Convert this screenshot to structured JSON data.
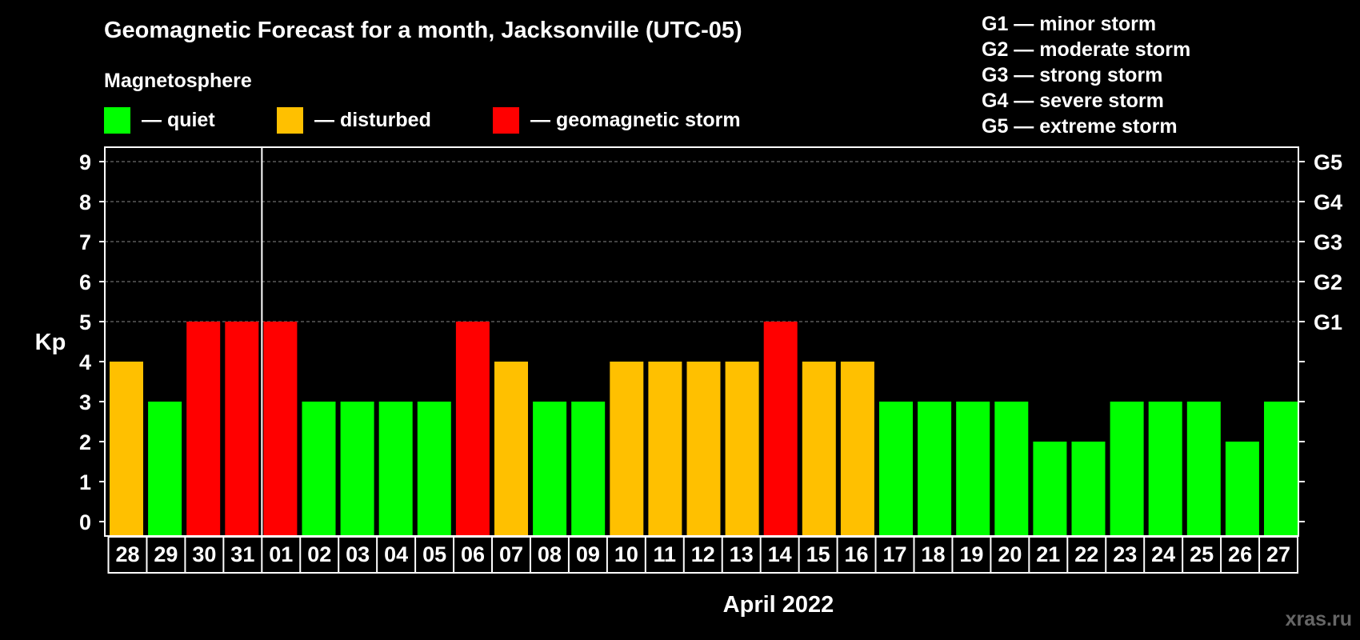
{
  "colors": {
    "background": "#000000",
    "foreground": "#ffffff",
    "quiet": "#00ff00",
    "disturbed": "#ffc000",
    "storm": "#ff0000",
    "grid": "#888888",
    "watermark": "#666666"
  },
  "chart_data": {
    "type": "bar",
    "title": "Geomagnetic Forecast for a month, Jacksonville (UTC-05)",
    "ylabel": "Kp",
    "xlabel": "April 2022",
    "ylim": [
      0,
      9
    ],
    "yticks": [
      "0",
      "1",
      "2",
      "3",
      "4",
      "5",
      "6",
      "7",
      "8",
      "9"
    ],
    "right_ticks": [
      {
        "value": 5,
        "label": "G1"
      },
      {
        "value": 6,
        "label": "G2"
      },
      {
        "value": 7,
        "label": "G3"
      },
      {
        "value": 8,
        "label": "G4"
      },
      {
        "value": 9,
        "label": "G5"
      }
    ],
    "grid_from": 5,
    "month_divider_after_index": 3,
    "categories": [
      "28",
      "29",
      "30",
      "31",
      "01",
      "02",
      "03",
      "04",
      "05",
      "06",
      "07",
      "08",
      "09",
      "10",
      "11",
      "12",
      "13",
      "14",
      "15",
      "16",
      "17",
      "18",
      "19",
      "20",
      "21",
      "22",
      "23",
      "24",
      "25",
      "26",
      "27"
    ],
    "values": [
      4,
      3,
      5,
      5,
      5,
      3,
      3,
      3,
      3,
      5,
      4,
      3,
      3,
      4,
      4,
      4,
      4,
      5,
      4,
      4,
      3,
      3,
      3,
      3,
      2,
      2,
      3,
      3,
      3,
      2,
      3
    ],
    "status": [
      "disturbed",
      "quiet",
      "storm",
      "storm",
      "storm",
      "quiet",
      "quiet",
      "quiet",
      "quiet",
      "storm",
      "disturbed",
      "quiet",
      "quiet",
      "disturbed",
      "disturbed",
      "disturbed",
      "disturbed",
      "storm",
      "disturbed",
      "disturbed",
      "quiet",
      "quiet",
      "quiet",
      "quiet",
      "quiet",
      "quiet",
      "quiet",
      "quiet",
      "quiet",
      "quiet",
      "quiet"
    ],
    "legend": {
      "heading": "Magnetosphere",
      "items": [
        {
          "key": "quiet",
          "label": "— quiet"
        },
        {
          "key": "disturbed",
          "label": "— disturbed"
        },
        {
          "key": "storm",
          "label": "— geomagnetic storm"
        }
      ]
    },
    "g_scale": [
      "G1 — minor storm",
      "G2 — moderate storm",
      "G3 — strong storm",
      "G4 — severe storm",
      "G5 — extreme storm"
    ]
  },
  "watermark": "xras.ru"
}
